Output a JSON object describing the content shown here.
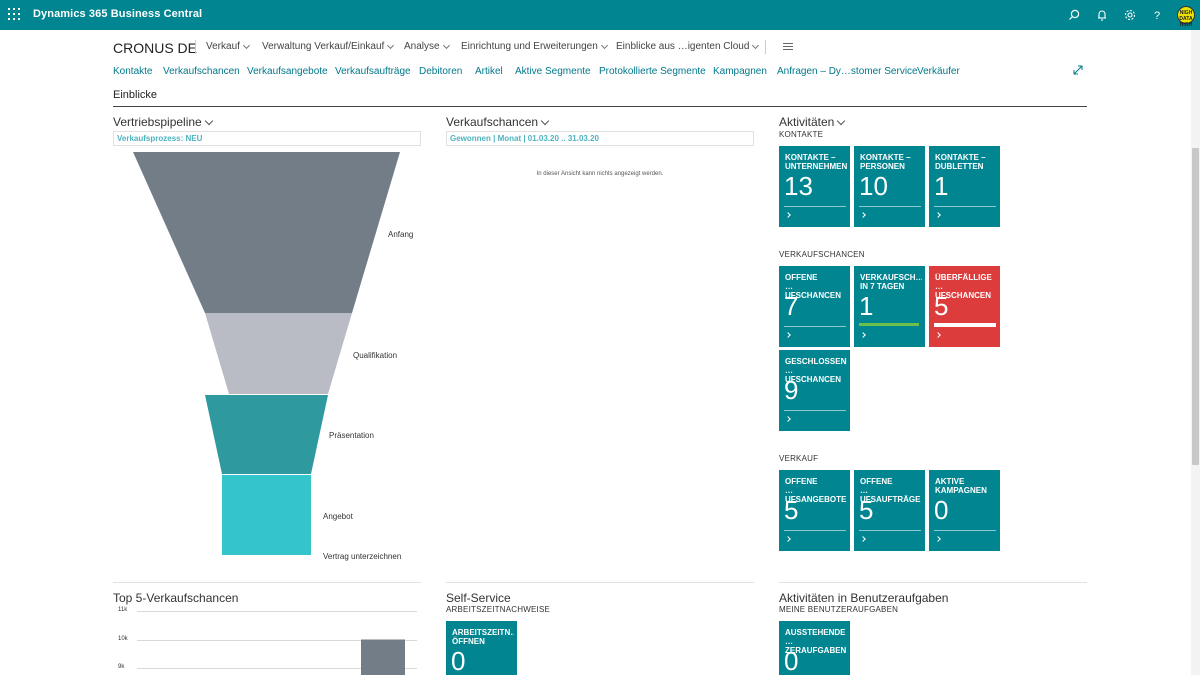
{
  "app": {
    "title": "Dynamics 365 Business Central",
    "avatar_text": "NIGH DATA HIGH"
  },
  "header": {
    "company": "CRONUS DE",
    "menus": [
      {
        "label": "Verkauf"
      },
      {
        "label": "Verwaltung Verkauf/Einkauf"
      },
      {
        "label": "Analyse"
      },
      {
        "label": "Einrichtung und Erweiterungen"
      },
      {
        "label": "Einblicke aus …igenten Cloud"
      }
    ],
    "links": [
      "Kontakte",
      "Verkaufschancen",
      "Verkaufsangebote",
      "Verkaufsaufträge",
      "Debitoren",
      "Artikel",
      "Aktive Segmente",
      "Protokollierte Segmente",
      "Kampagnen",
      "Anfragen – Dy…stomer Service",
      "Verkäufer"
    ]
  },
  "section_title": "Einblicke",
  "pipeline": {
    "title": "Vertriebspipeline",
    "filter": "Verkaufsprozess: NEU",
    "stages": [
      "Anfang",
      "Qualifikation",
      "Präsentation",
      "Angebot",
      "Vertrag unterzeichnen"
    ],
    "colors": [
      "#737d87",
      "#b9bcc4",
      "#2e9aa0",
      "#34c4cc"
    ]
  },
  "opportunities": {
    "title": "Verkaufschancen",
    "filter": "Gewonnen | Monat | 01.03.20 .. 31.03.20",
    "empty_message": "In dieser Ansicht kann nichts angezeigt werden."
  },
  "activities": {
    "title": "Aktivitäten",
    "groups": [
      {
        "heading": "KONTAKTE",
        "tiles": [
          {
            "label": "KONTAKTE –\nUNTERNEHMEN",
            "value": "13"
          },
          {
            "label": "KONTAKTE –\nPERSONEN",
            "value": "10"
          },
          {
            "label": "KONTAKTE –\nDUBLETTEN",
            "value": "1"
          }
        ]
      },
      {
        "heading": "VERKAUFSCHANCEN",
        "tiles": [
          {
            "label": "OFFENE\n…UFSCHANCEN",
            "value": "7"
          },
          {
            "label": "VERKAUFSCH…\nIN 7 TAGEN",
            "value": "1"
          },
          {
            "label": "ÜBERFÄLLIGE\n…UFSCHANCEN",
            "value": "5"
          },
          {
            "label": "GESCHLOSSENE\n…UFSCHANCEN",
            "value": "9"
          }
        ]
      },
      {
        "heading": "VERKAUF",
        "tiles": [
          {
            "label": "OFFENE\n…UFSANGEBOTE",
            "value": "5"
          },
          {
            "label": "OFFENE\n…UFSAUFTRÄGE",
            "value": "5"
          },
          {
            "label": "AKTIVE\nKAMPAGNEN",
            "value": "0"
          }
        ]
      }
    ],
    "colors": {
      "tile": "#008591",
      "alert": "#dc3c3c",
      "ok_bar": "#6cc04a"
    }
  },
  "top5": {
    "title": "Top 5-Verkaufschancen",
    "chart_data": {
      "type": "bar",
      "yticks": [
        "11k",
        "10k",
        "9k"
      ],
      "categories": [
        "",
        "",
        "",
        "",
        ""
      ],
      "values": [
        null,
        null,
        null,
        null,
        10000
      ],
      "ylim": [
        9000,
        11000
      ]
    }
  },
  "selfservice": {
    "title": "Self-Service",
    "heading": "ARBEITSZEITNACHWEISE",
    "tile": {
      "label": "ARBEITSZEITN…\nÖFFNEN",
      "value": "0"
    }
  },
  "usertasks": {
    "title": "Aktivitäten in Benutzeraufgaben",
    "heading": "MEINE BENUTZERAUFGABEN",
    "tile": {
      "label": "AUSSTEHENDE\n…ZERAUFGABEN",
      "value": "0"
    }
  }
}
